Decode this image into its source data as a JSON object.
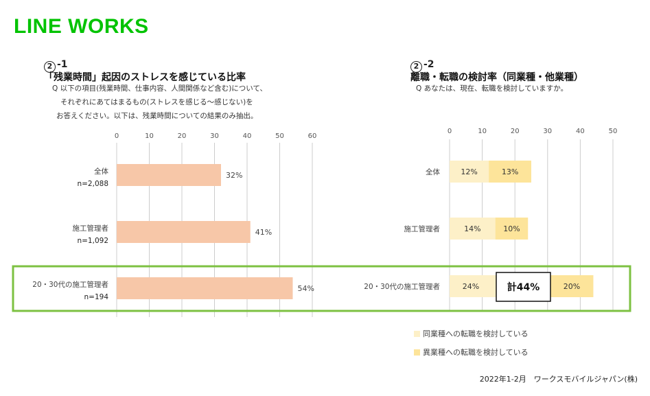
{
  "logo": "LINE WORKS",
  "left": {
    "num_circle": "2",
    "num_suffix": "-1",
    "title": "「残業時間」起因のストレスを感じている比率",
    "q1": "Q 以下の項目(残業時間、仕事内容、人間関係など含む)について、",
    "q2": "それぞれにあてはまるもの(ストレスを感じる〜感じない)を",
    "q3": "お答えください。以下は、残業時間についての結果のみ抽出。"
  },
  "right": {
    "num_circle": "2",
    "num_suffix": "-2",
    "title": "離職・転職の検討率（同業種・他業種）",
    "q1": "Q あなたは、現在、転職を検討していますか。",
    "total_label": "計44%"
  },
  "legend": {
    "items": [
      {
        "label": "同業種への転職を検討している",
        "color": "#fdf0c8"
      },
      {
        "label": "異業種への転職を検討している",
        "color": "#fde49a"
      }
    ]
  },
  "source": "2022年1-2月　ワークスモバイルジャパン(株)",
  "chart_data": [
    {
      "type": "bar",
      "orientation": "horizontal",
      "title": "「残業時間」起因のストレスを感じている比率",
      "categories": [
        "全体",
        "施工管理者",
        "20・30代の施工管理者"
      ],
      "sample_sizes": [
        "n=2,088",
        "n=1,092",
        "n=194"
      ],
      "values": [
        32,
        41,
        54
      ],
      "value_labels": [
        "32%",
        "41%",
        "54%"
      ],
      "xlim": [
        0,
        60
      ],
      "ticks": [
        "0",
        "10",
        "20",
        "30",
        "40",
        "50",
        "60"
      ],
      "grid": true,
      "bar_color": "#f7c7a8"
    },
    {
      "type": "bar",
      "orientation": "horizontal",
      "stacked": true,
      "title": "離職・転職の検討率（同業種・他業種）",
      "categories": [
        "全体",
        "施工管理者",
        "20・30代の施工管理者"
      ],
      "series": [
        {
          "name": "同業種への転職を検討している",
          "values": [
            12,
            14,
            24
          ],
          "labels": [
            "12%",
            "14%",
            "24%"
          ],
          "color": "#fdf0c8"
        },
        {
          "name": "異業種への転職を検討している",
          "values": [
            13,
            10,
            20
          ],
          "labels": [
            "13%",
            "10%",
            "20%"
          ],
          "color": "#fde49a"
        }
      ],
      "xlim": [
        0,
        50
      ],
      "ticks": [
        "0",
        "10",
        "20",
        "30",
        "40",
        "50"
      ],
      "grid": true
    }
  ],
  "colors": {
    "highlight_border": "#7dc142",
    "grid": "#cccccc"
  }
}
